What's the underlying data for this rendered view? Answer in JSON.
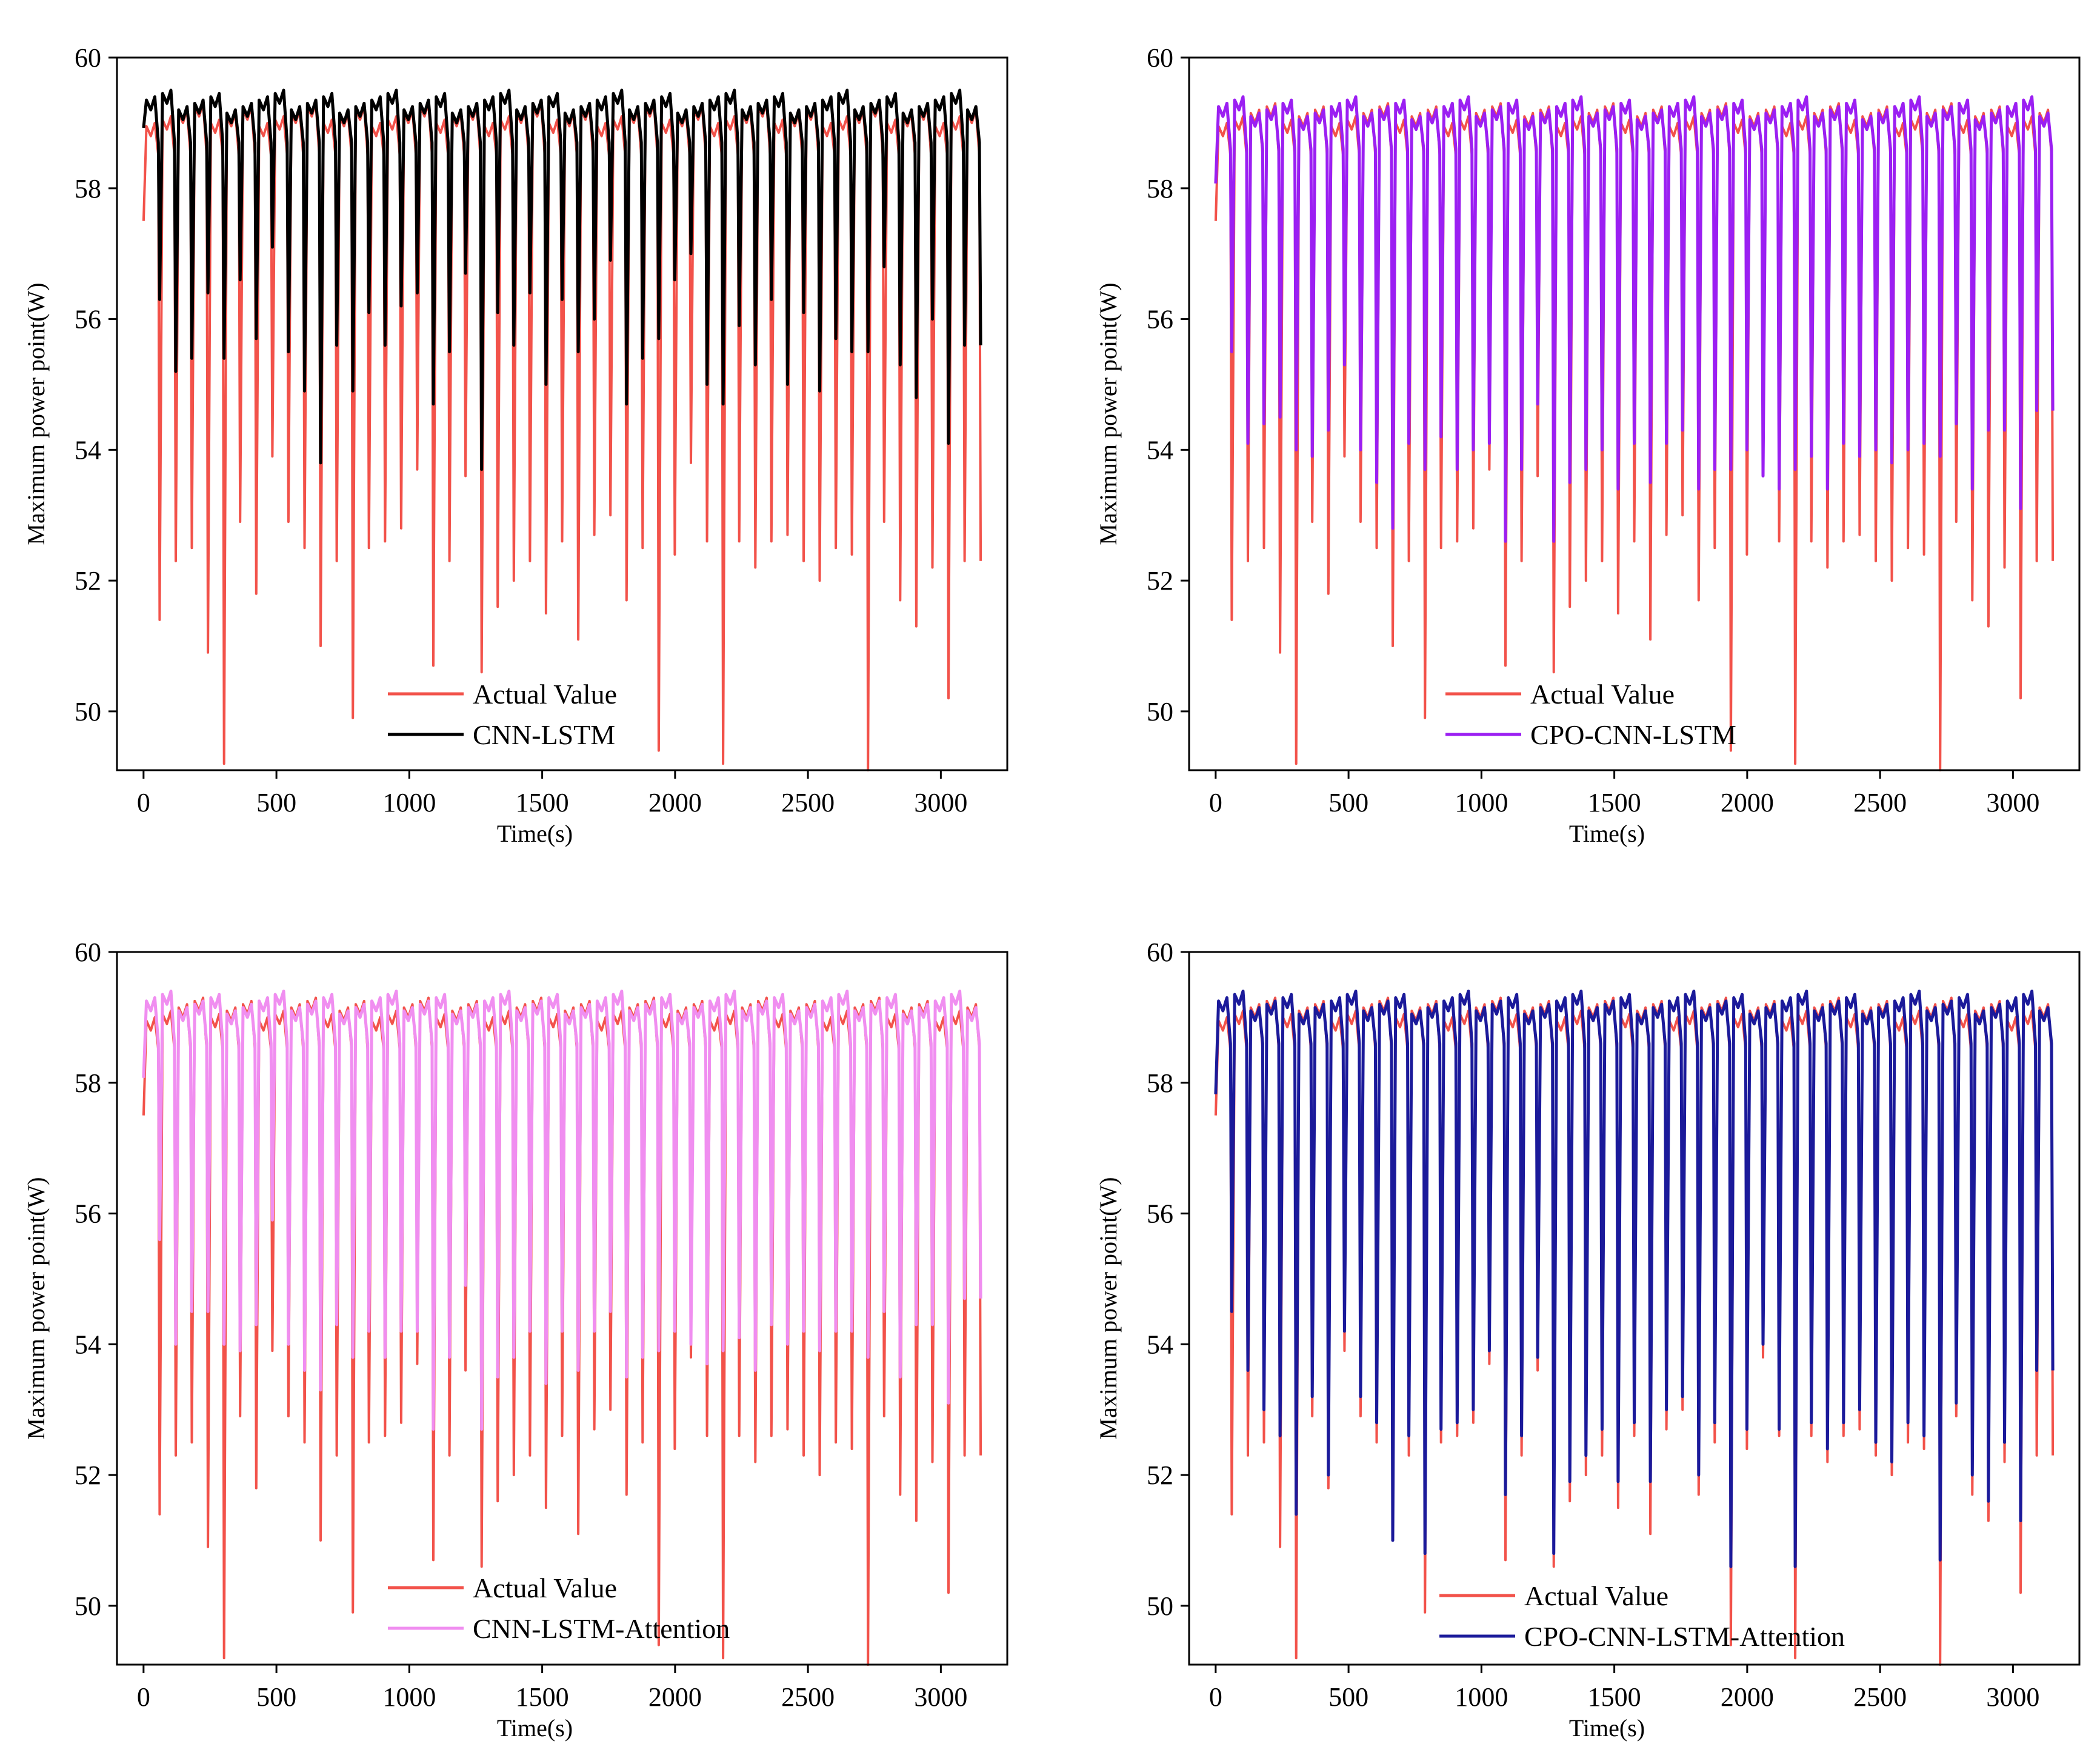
{
  "colors": {
    "actual": "#f2524a",
    "cnn_lstm": "#000000",
    "cpo_cnn_lstm": "#9b1ff2",
    "cnn_lstm_attention": "#f08ef0",
    "cpo_cnn_lstm_attention": "#1b1a9a"
  },
  "chart_data": [
    {
      "type": "line",
      "title": "",
      "xlabel": "Time(s)",
      "ylabel": "Maximum power point(W)",
      "xlim": [
        -100,
        3250
      ],
      "ylim": [
        49.1,
        60
      ],
      "xticks": [
        0,
        500,
        1000,
        1500,
        2000,
        2500,
        3000
      ],
      "yticks": [
        50,
        52,
        54,
        56,
        58,
        60
      ],
      "xtick_labels": [
        "0",
        "500",
        "1000",
        "1500",
        "2000",
        "2500",
        "3000"
      ],
      "ytick_labels": [
        "50",
        "52",
        "54",
        "56",
        "58",
        "60"
      ],
      "legend": [
        "Actual Value",
        "CNN-LSTM"
      ],
      "legend_position": "lower-center",
      "series": [
        {
          "name": "Actual Value",
          "color_key": "actual",
          "peak": 59.1,
          "dips": [
            52.7,
            51.4,
            52.3,
            52.5,
            50.9,
            49.2,
            52.9,
            51.8,
            53.9,
            52.9,
            52.5,
            51.0,
            52.3,
            49.9,
            52.5,
            52.6,
            52.8,
            53.7,
            50.7,
            52.3,
            53.6,
            50.6,
            51.6,
            52.0,
            52.3,
            51.5,
            52.6,
            51.1,
            52.7,
            53.0,
            51.7,
            52.5,
            49.4,
            52.4,
            53.8,
            52.6,
            49.2,
            52.6,
            52.2,
            52.6,
            52.7,
            52.3,
            52.0,
            52.5,
            52.4,
            49.1,
            52.9,
            51.7,
            51.3,
            52.2,
            50.2,
            52.3
          ]
        },
        {
          "name": "CNN-LSTM",
          "color_key": "cnn_lstm",
          "peak": 59.3,
          "dips": [
            57.8,
            56.3,
            55.2,
            55.4,
            56.4,
            55.4,
            56.6,
            55.7,
            57.1,
            55.5,
            54.9,
            53.8,
            55.6,
            54.9,
            56.1,
            55.6,
            56.2,
            56.4,
            54.7,
            55.5,
            56.7,
            53.7,
            56.1,
            55.6,
            56.4,
            55.0,
            56.3,
            55.5,
            56.0,
            56.9,
            54.7,
            55.4,
            55.7,
            56.6,
            57.0,
            55.0,
            54.7,
            55.9,
            55.3,
            56.3,
            55.0,
            56.1,
            54.9,
            55.7,
            55.5,
            55.5,
            56.8,
            55.3,
            54.8,
            56.0,
            54.1,
            55.6
          ]
        }
      ]
    },
    {
      "type": "line",
      "title": "",
      "xlabel": "Time(s)",
      "ylabel": "Maximum power point(W)",
      "xlim": [
        -100,
        3250
      ],
      "ylim": [
        49.1,
        60
      ],
      "xticks": [
        0,
        500,
        1000,
        1500,
        2000,
        2500,
        3000
      ],
      "yticks": [
        50,
        52,
        54,
        56,
        58,
        60
      ],
      "xtick_labels": [
        "0",
        "500",
        "1000",
        "1500",
        "2000",
        "2500",
        "3000"
      ],
      "ytick_labels": [
        "50",
        "52",
        "54",
        "56",
        "58",
        "60"
      ],
      "legend": [
        "Actual Value",
        "CPO-CNN-LSTM"
      ],
      "legend_position": "lower-center",
      "series": [
        {
          "name": "Actual Value",
          "color_key": "actual",
          "peak": 59.1,
          "dips": [
            52.7,
            51.4,
            52.3,
            52.5,
            50.9,
            49.2,
            52.9,
            51.8,
            53.9,
            52.9,
            52.5,
            51.0,
            52.3,
            49.9,
            52.5,
            52.6,
            52.8,
            53.7,
            50.7,
            52.3,
            53.6,
            50.6,
            51.6,
            52.0,
            52.3,
            51.5,
            52.6,
            51.1,
            52.7,
            53.0,
            51.7,
            52.5,
            49.4,
            52.4,
            53.8,
            52.6,
            49.2,
            52.6,
            52.2,
            52.6,
            52.7,
            52.3,
            52.0,
            52.5,
            52.4,
            49.1,
            52.9,
            51.7,
            51.3,
            52.2,
            50.2,
            52.3
          ]
        },
        {
          "name": "CPO-CNN-LSTM",
          "color_key": "cpo_cnn_lstm",
          "peak": 59.2,
          "dips": [
            54.7,
            55.5,
            54.1,
            54.4,
            54.5,
            54.0,
            53.9,
            54.3,
            55.3,
            54.0,
            53.5,
            52.8,
            54.1,
            53.7,
            54.2,
            53.7,
            54.0,
            54.1,
            52.6,
            53.7,
            54.7,
            52.6,
            53.5,
            53.7,
            54.0,
            53.4,
            54.1,
            53.5,
            54.1,
            54.3,
            53.4,
            53.7,
            53.7,
            54.0,
            53.6,
            53.4,
            53.7,
            53.9,
            53.4,
            54.1,
            53.9,
            54.0,
            53.8,
            54.0,
            54.1,
            53.9,
            54.4,
            53.4,
            54.3,
            54.3,
            53.1,
            54.6
          ]
        }
      ]
    },
    {
      "type": "line",
      "title": "",
      "xlabel": "Time(s)",
      "ylabel": "Maximum power point(W)",
      "xlim": [
        -100,
        3250
      ],
      "ylim": [
        49.1,
        60
      ],
      "xticks": [
        0,
        500,
        1000,
        1500,
        2000,
        2500,
        3000
      ],
      "yticks": [
        50,
        52,
        54,
        56,
        58,
        60
      ],
      "xtick_labels": [
        "0",
        "500",
        "1000",
        "1500",
        "2000",
        "2500",
        "3000"
      ],
      "ytick_labels": [
        "50",
        "52",
        "54",
        "56",
        "58",
        "60"
      ],
      "legend": [
        "Actual Value",
        "CNN-LSTM-Attention"
      ],
      "legend_position": "lower-center",
      "series": [
        {
          "name": "Actual Value",
          "color_key": "actual",
          "peak": 59.1,
          "dips": [
            52.7,
            51.4,
            52.3,
            52.5,
            50.9,
            49.2,
            52.9,
            51.8,
            53.9,
            52.9,
            52.5,
            51.0,
            52.3,
            49.9,
            52.5,
            52.6,
            52.8,
            53.7,
            50.7,
            52.3,
            53.6,
            50.6,
            51.6,
            52.0,
            52.3,
            51.5,
            52.6,
            51.1,
            52.7,
            53.0,
            51.7,
            52.5,
            49.4,
            52.4,
            53.8,
            52.6,
            49.2,
            52.6,
            52.2,
            52.6,
            52.7,
            52.3,
            52.0,
            52.5,
            52.4,
            49.1,
            52.9,
            51.7,
            51.3,
            52.2,
            50.2,
            52.3
          ]
        },
        {
          "name": "CNN-LSTM-Attention",
          "color_key": "cnn_lstm_attention",
          "peak": 59.2,
          "dips": [
            54.7,
            55.6,
            54.0,
            54.5,
            54.5,
            54.0,
            53.9,
            54.3,
            55.9,
            54.0,
            53.6,
            53.3,
            54.3,
            53.8,
            54.2,
            53.8,
            54.2,
            54.2,
            52.7,
            53.8,
            54.9,
            52.7,
            53.5,
            53.8,
            54.2,
            53.4,
            54.2,
            53.6,
            54.2,
            54.5,
            53.5,
            53.8,
            53.9,
            54.2,
            54.0,
            53.7,
            53.9,
            54.1,
            53.6,
            54.3,
            54.0,
            54.2,
            53.9,
            54.2,
            54.2,
            53.8,
            54.5,
            53.5,
            54.3,
            54.3,
            53.1,
            54.7
          ]
        }
      ]
    },
    {
      "type": "line",
      "title": "",
      "xlabel": "Time(s)",
      "ylabel": "Maximum power point(W)",
      "xlim": [
        -100,
        3250
      ],
      "ylim": [
        49.1,
        60
      ],
      "xticks": [
        0,
        500,
        1000,
        1500,
        2000,
        2500,
        3000
      ],
      "yticks": [
        50,
        52,
        54,
        56,
        58,
        60
      ],
      "xtick_labels": [
        "0",
        "500",
        "1000",
        "1500",
        "2000",
        "2500",
        "3000"
      ],
      "ytick_labels": [
        "50",
        "52",
        "54",
        "56",
        "58",
        "60"
      ],
      "legend": [
        "Actual Value",
        "CPO-CNN-LSTM-Attention"
      ],
      "legend_position": "lower-center",
      "series": [
        {
          "name": "Actual Value",
          "color_key": "actual",
          "peak": 59.1,
          "dips": [
            52.7,
            51.4,
            52.3,
            52.5,
            50.9,
            49.2,
            52.9,
            51.8,
            53.9,
            52.9,
            52.5,
            51.0,
            52.3,
            49.9,
            52.5,
            52.6,
            52.8,
            53.7,
            50.7,
            52.3,
            53.6,
            50.6,
            51.6,
            52.0,
            52.3,
            51.5,
            52.6,
            51.1,
            52.7,
            53.0,
            51.7,
            52.5,
            49.4,
            52.4,
            53.8,
            52.6,
            49.2,
            52.6,
            52.2,
            52.6,
            52.7,
            52.3,
            52.0,
            52.5,
            52.4,
            49.1,
            52.9,
            51.7,
            51.3,
            52.2,
            50.2,
            52.3
          ]
        },
        {
          "name": "CPO-CNN-LSTM-Attention",
          "color_key": "cpo_cnn_lstm_attention",
          "peak": 59.2,
          "dips": [
            53.7,
            54.5,
            53.6,
            53.0,
            52.6,
            51.4,
            53.2,
            52.0,
            54.2,
            53.2,
            52.8,
            51.0,
            52.6,
            50.8,
            52.7,
            52.8,
            53.0,
            53.9,
            51.7,
            52.6,
            53.8,
            50.8,
            51.9,
            52.3,
            52.7,
            51.9,
            52.8,
            51.9,
            53.0,
            53.2,
            52.0,
            52.8,
            50.6,
            52.7,
            54.0,
            52.7,
            50.6,
            52.8,
            52.4,
            52.8,
            53.0,
            52.5,
            52.2,
            52.8,
            52.6,
            50.7,
            53.1,
            52.0,
            51.6,
            52.5,
            51.3,
            53.6
          ]
        }
      ]
    }
  ]
}
